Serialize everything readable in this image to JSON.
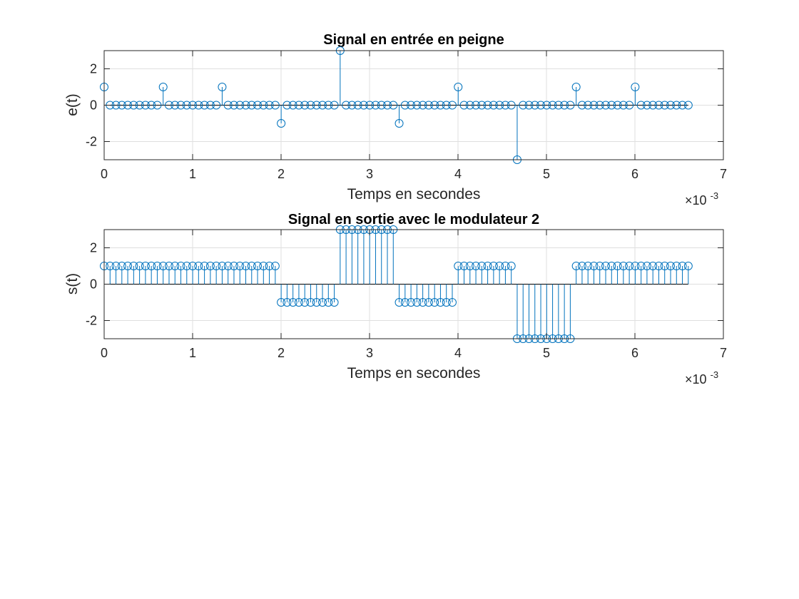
{
  "chart_data": [
    {
      "type": "stem",
      "title": "Signal en entrée en peigne",
      "xlabel": "Temps en secondes",
      "ylabel": "e(t)",
      "xlim": [
        0,
        7
      ],
      "ylim": [
        -3,
        3
      ],
      "x_ticks": [
        "0",
        "1",
        "2",
        "3",
        "4",
        "5",
        "6",
        "7"
      ],
      "y_ticks": [
        "-2",
        "0",
        "2"
      ],
      "x_ticks_values": [
        0,
        1,
        2,
        3,
        4,
        5,
        6,
        7
      ],
      "y_ticks_values": [
        -2,
        0,
        2
      ],
      "x_exponent_base": "×10",
      "x_exponent_power": "-3",
      "grid": true,
      "color": "#0072BD",
      "x_step": 0.0667,
      "symbols": [
        1,
        1,
        1,
        -1,
        3,
        -1,
        1,
        -3,
        1,
        1
      ],
      "samples_per_symbol": 10
    },
    {
      "type": "stem",
      "title": "Signal en sortie avec le modulateur 2",
      "xlabel": "Temps en secondes",
      "ylabel": "s(t)",
      "xlim": [
        0,
        7
      ],
      "ylim": [
        -3,
        3
      ],
      "x_ticks": [
        "0",
        "1",
        "2",
        "3",
        "4",
        "5",
        "6",
        "7"
      ],
      "y_ticks": [
        "-2",
        "0",
        "2"
      ],
      "x_ticks_values": [
        0,
        1,
        2,
        3,
        4,
        5,
        6,
        7
      ],
      "y_ticks_values": [
        -2,
        0,
        2
      ],
      "x_exponent_base": "×10",
      "x_exponent_power": "-3",
      "grid": true,
      "color": "#0072BD",
      "x_step": 0.0667,
      "symbols": [
        1,
        1,
        1,
        -1,
        3,
        -1,
        1,
        -3,
        1,
        1
      ],
      "samples_per_symbol": 10
    }
  ]
}
